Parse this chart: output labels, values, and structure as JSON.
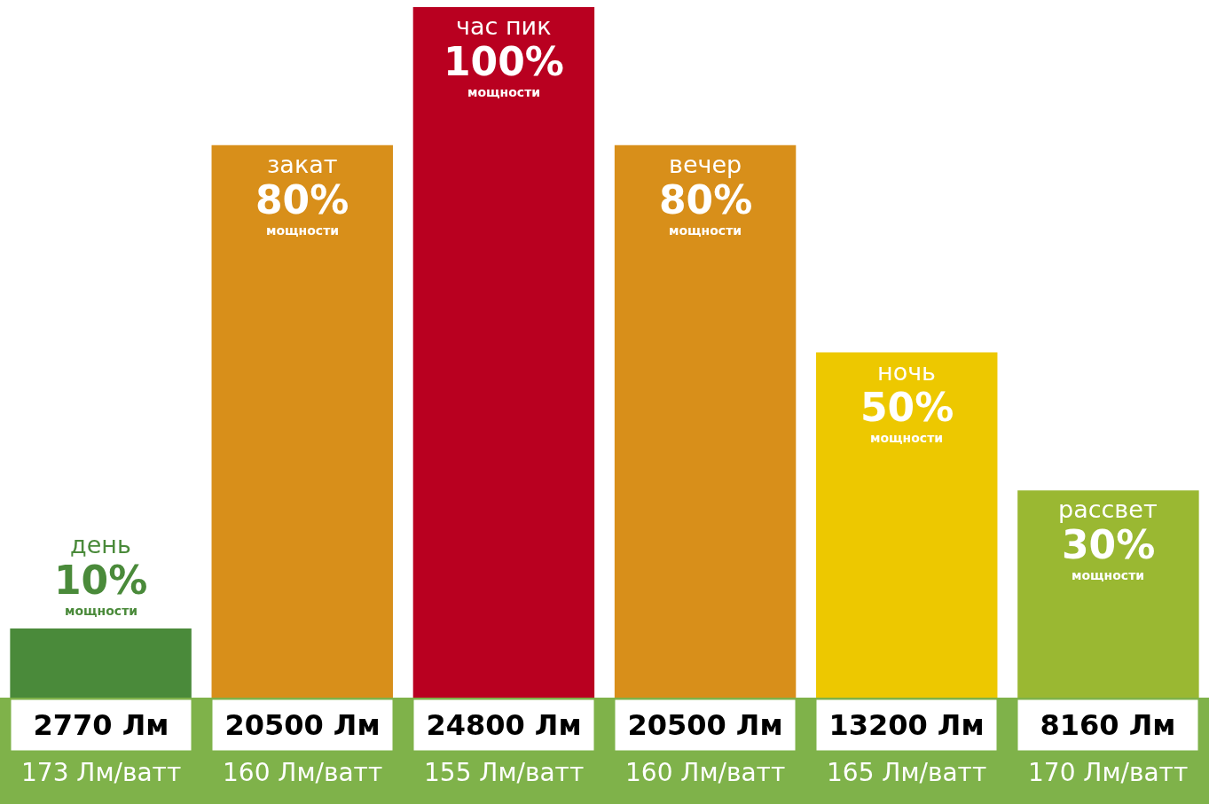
{
  "chart_data": {
    "type": "bar",
    "categories": [
      "день",
      "закат",
      "час пик",
      "вечер",
      "ночь",
      "рассвет"
    ],
    "values": [
      10,
      80,
      100,
      80,
      50,
      30
    ],
    "colors": [
      "#4a8a3a",
      "#d88f1a",
      "#b90020",
      "#d88f1a",
      "#edc800",
      "#9ab832"
    ],
    "value_labels": [
      "10%",
      "80%",
      "100%",
      "80%",
      "50%",
      "30%"
    ],
    "annotations": [
      "мощности",
      "мощности",
      "мощности",
      "мощности",
      "мощности",
      "мощности",
      "2770 Лм",
      "20500 Лм",
      "24800 Лм",
      "20500 Лм",
      "13200 Лм",
      "8160 Лм",
      "173 Лм/ватт",
      "160 Лм/ватт",
      "155 Лм/ватт",
      "160 Лм/ватт",
      "165 Лм/ватт",
      "170 Лм/ватт"
    ],
    "legend": false
  }
}
